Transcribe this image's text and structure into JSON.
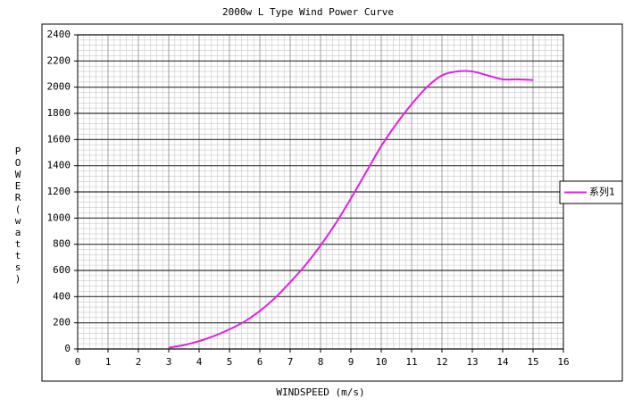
{
  "chart_data": {
    "type": "line",
    "title": "2000w L Type Wind Power Curve",
    "x_label": "WINDSPEED (m/s)",
    "y_label": "POWER(watts)",
    "x": [
      3,
      3.5,
      4,
      4.5,
      5,
      5.5,
      6,
      6.5,
      7,
      7.5,
      8,
      8.5,
      9,
      9.5,
      10,
      10.5,
      11,
      11.5,
      12,
      12.5,
      13,
      13.5,
      14,
      14.5,
      15
    ],
    "series": [
      {
        "name": "系列1",
        "color": "#e020e0",
        "values": [
          10,
          30,
          60,
          100,
          150,
          210,
          290,
          390,
          510,
          640,
          790,
          960,
          1150,
          1350,
          1550,
          1720,
          1870,
          2000,
          2090,
          2120,
          2120,
          2090,
          2060,
          2060,
          2055
        ]
      }
    ],
    "xlim": [
      0,
      16
    ],
    "xticks": [
      0,
      1,
      2,
      3,
      4,
      5,
      6,
      7,
      8,
      9,
      10,
      11,
      12,
      13,
      14,
      15,
      16
    ],
    "ylim": [
      0,
      2400
    ],
    "yticks": [
      0,
      200,
      400,
      600,
      800,
      1000,
      1200,
      1400,
      1600,
      1800,
      2000,
      2200,
      2400
    ],
    "grid": true,
    "legend": "right"
  }
}
